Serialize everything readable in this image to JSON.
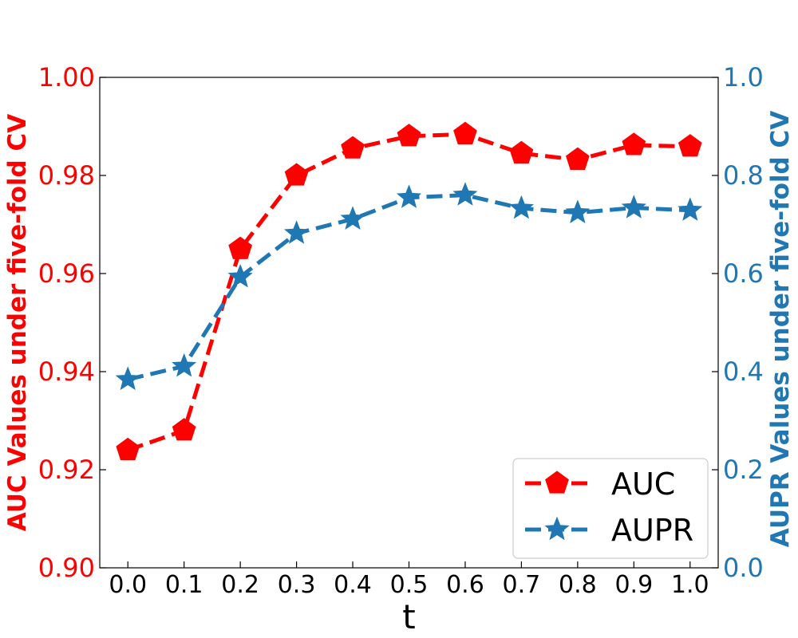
{
  "chart_data": {
    "type": "line",
    "x": [
      0.0,
      0.1,
      0.2,
      0.3,
      0.4,
      0.5,
      0.6,
      0.7,
      0.8,
      0.9,
      1.0
    ],
    "x_tick_labels": [
      "0.0",
      "0.1",
      "0.2",
      "0.3",
      "0.4",
      "0.5",
      "0.6",
      "0.7",
      "0.8",
      "0.9",
      "1.0"
    ],
    "xlabel": "t",
    "xlim": [
      -0.05,
      1.05
    ],
    "y_left": {
      "label": "AUC Values under five-fold CV",
      "lim": [
        0.9,
        1.0
      ],
      "ticks": [
        0.9,
        0.92,
        0.94,
        0.96,
        0.98,
        1.0
      ],
      "tick_labels": [
        "0.90",
        "0.92",
        "0.94",
        "0.96",
        "0.98",
        "1.00"
      ],
      "color": "#ff0000"
    },
    "y_right": {
      "label": "AUPR Values under five-fold CV",
      "lim": [
        0.0,
        1.0
      ],
      "ticks": [
        0.0,
        0.2,
        0.4,
        0.6,
        0.8,
        1.0
      ],
      "tick_labels": [
        "0.0",
        "0.2",
        "0.4",
        "0.6",
        "0.8",
        "1.0"
      ],
      "color": "#1f77b4"
    },
    "series": [
      {
        "name": "AUC",
        "axis": "left",
        "color": "#ff0000",
        "marker": "pentagon",
        "line_style": "dashed",
        "values": [
          0.924,
          0.928,
          0.965,
          0.98,
          0.9855,
          0.988,
          0.9884,
          0.9845,
          0.9832,
          0.9862,
          0.9859
        ]
      },
      {
        "name": "AUPR",
        "axis": "right",
        "color": "#1f77b4",
        "marker": "star",
        "line_style": "dashed",
        "values": [
          0.384,
          0.411,
          0.593,
          0.682,
          0.711,
          0.755,
          0.76,
          0.733,
          0.724,
          0.734,
          0.729
        ]
      }
    ],
    "legend": {
      "position": "bottom-right",
      "entries": [
        "AUC",
        "AUPR"
      ]
    },
    "grid": false
  }
}
